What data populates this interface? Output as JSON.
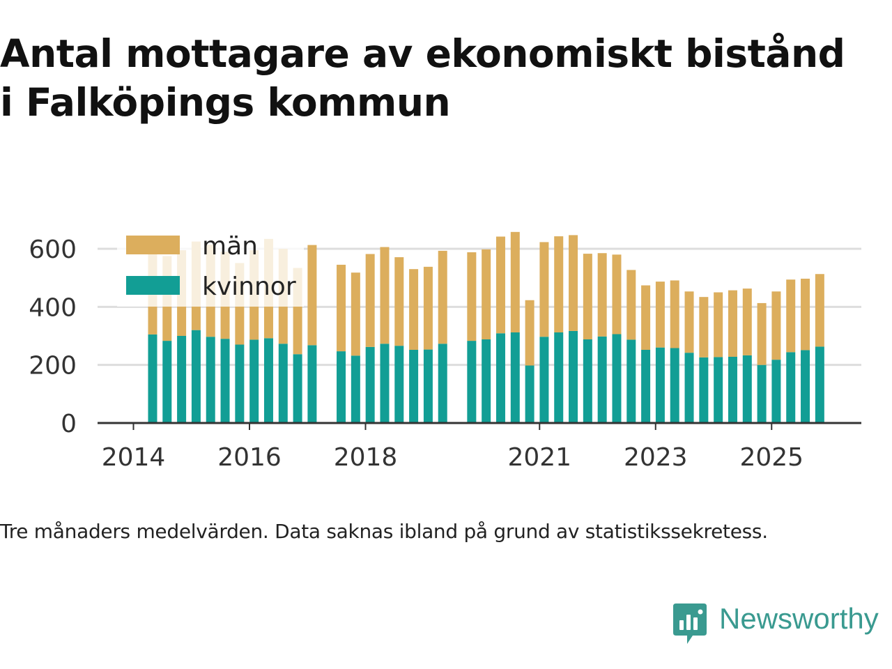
{
  "title_lines": [
    "Antal mottagare av ekonomiskt bistånd",
    "i Falköpings kommun"
  ],
  "caption": "Tre månaders medelvärden. Data saknas ibland på grund av statistikssekretess.",
  "brand": "Newsworthy",
  "colors": {
    "men": "#dcae5d",
    "women": "#129e95",
    "grid": "#dddddd",
    "axis": "#333333",
    "brand": "#3a9a90"
  },
  "chart_data": {
    "type": "bar",
    "stacked": true,
    "title": "Antal mottagare av ekonomiskt bistånd i Falköpings kommun",
    "xlabel": "",
    "ylabel": "",
    "ylim": [
      0,
      650
    ],
    "yticks": [
      0,
      200,
      400,
      600
    ],
    "x_tick_labels": [
      "2014",
      "2016",
      "2018",
      "2021",
      "2023",
      "2025"
    ],
    "x_tick_years": [
      2014,
      2016,
      2018,
      2021,
      2023,
      2025
    ],
    "legend": [
      {
        "key": "men",
        "label": "män"
      },
      {
        "key": "women",
        "label": "kvinnor"
      }
    ],
    "x": [
      2014.33,
      2014.58,
      2014.83,
      2015.08,
      2015.33,
      2015.58,
      2015.83,
      2016.08,
      2016.33,
      2016.58,
      2016.83,
      2017.08,
      2017.58,
      2017.83,
      2018.08,
      2018.33,
      2018.58,
      2018.83,
      2019.08,
      2019.33,
      2019.83,
      2020.08,
      2020.33,
      2020.58,
      2020.83,
      2021.08,
      2021.33,
      2021.58,
      2021.83,
      2022.08,
      2022.33,
      2022.58,
      2022.83,
      2023.08,
      2023.33,
      2023.58,
      2023.83,
      2024.08,
      2024.33,
      2024.58,
      2024.83,
      2025.08,
      2025.33,
      2025.58,
      2025.83
    ],
    "series": [
      {
        "name": "kvinnor",
        "key": "women",
        "values": [
          305,
          283,
          300,
          320,
          297,
          290,
          270,
          287,
          292,
          273,
          237,
          268,
          247,
          232,
          262,
          273,
          266,
          252,
          253,
          273,
          283,
          288,
          309,
          312,
          198,
          297,
          312,
          317,
          288,
          298,
          306,
          287,
          252,
          260,
          258,
          242,
          226,
          227,
          228,
          233,
          200,
          218,
          244,
          251,
          263
        ]
      },
      {
        "name": "män",
        "key": "men",
        "values": [
          285,
          292,
          295,
          305,
          317,
          300,
          281,
          308,
          342,
          327,
          297,
          345,
          298,
          286,
          320,
          333,
          305,
          278,
          285,
          320,
          305,
          310,
          333,
          346,
          225,
          326,
          331,
          330,
          295,
          287,
          274,
          240,
          222,
          227,
          233,
          211,
          208,
          223,
          229,
          230,
          213,
          235,
          250,
          246,
          250
        ]
      }
    ]
  }
}
